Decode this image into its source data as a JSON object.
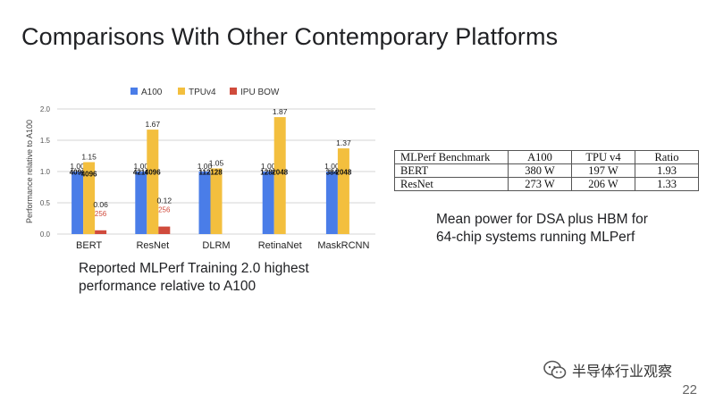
{
  "slide": {
    "title": "Comparisons With Other Contemporary Platforms",
    "page_number": "22",
    "watermark_text": "半导体行业观察",
    "watermark_icon": "wechat-icon"
  },
  "chart_data": {
    "type": "bar",
    "ylabel": "Performance relative to A100",
    "ylim": [
      0,
      2.0
    ],
    "yticks": [
      "0.0",
      "0.5",
      "1.0",
      "1.5",
      "2.0"
    ],
    "grid": true,
    "legend": "top",
    "categories": [
      "BERT",
      "ResNet",
      "DLRM",
      "RetinaNet",
      "MaskRCNN"
    ],
    "series": [
      {
        "name": "A100",
        "color": "#4a7de8",
        "values": [
          1.0,
          1.0,
          1.0,
          1.0,
          1.0
        ],
        "value_labels": [
          "1.00",
          "1.00",
          "1.00",
          "1.00",
          "1.00"
        ],
        "chip_counts": [
          "4096",
          "4216",
          "112",
          "1280",
          "384"
        ]
      },
      {
        "name": "TPUv4",
        "color": "#f3bf3e",
        "values": [
          1.15,
          1.67,
          1.05,
          1.87,
          1.37
        ],
        "value_labels": [
          "1.15",
          "1.67",
          "1.05",
          "1.87",
          "1.37"
        ],
        "chip_counts": [
          "4096",
          "4096",
          "128",
          "2048",
          "2048"
        ]
      },
      {
        "name": "IPU BOW",
        "color": "#d04b3c",
        "values": [
          0.06,
          0.12,
          null,
          null,
          null
        ],
        "value_labels": [
          "0.06",
          "0.12",
          "",
          "",
          ""
        ],
        "chip_counts": [
          "256",
          "256",
          "",
          "",
          ""
        ]
      }
    ]
  },
  "captions": {
    "chart_caption_lines": [
      "Reported MLPerf Training 2.0 highest",
      "performance relative to A100"
    ],
    "table_caption_lines": [
      "Mean power for DSA plus HBM for",
      "64-chip systems running MLPerf"
    ]
  },
  "power_table": {
    "headers": [
      "MLPerf Benchmark",
      "A100",
      "TPU v4",
      "Ratio"
    ],
    "rows": [
      [
        "BERT",
        "380 W",
        "197 W",
        "1.93"
      ],
      [
        "ResNet",
        "273 W",
        "206 W",
        "1.33"
      ]
    ]
  }
}
